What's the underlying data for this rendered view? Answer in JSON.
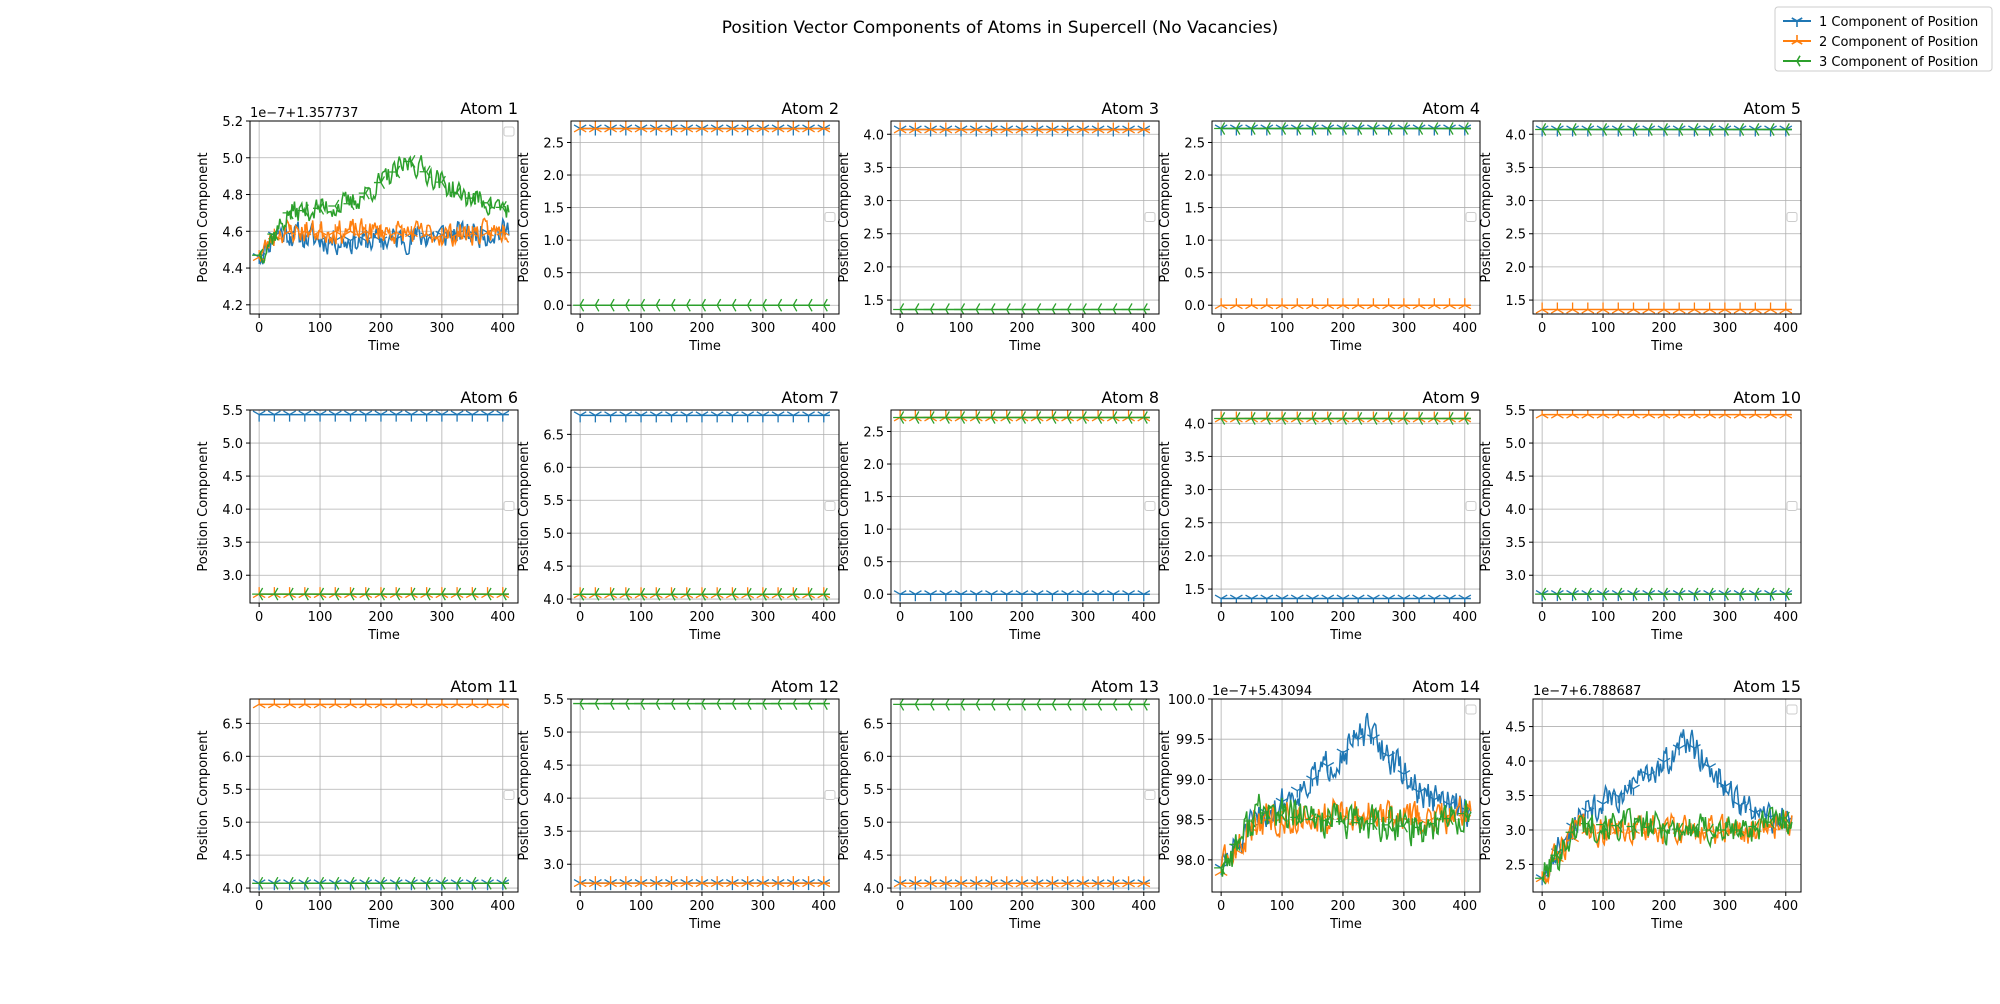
{
  "figure": {
    "title": "Position Vector Components of Atoms in Supercell (No Vacancies)"
  },
  "legend": {
    "placement": "top-right",
    "entries": [
      {
        "label": "1 Component of Position",
        "color": "#1f77b4",
        "marker": "tri_down"
      },
      {
        "label": "2 Component of Position",
        "color": "#ff7f0e",
        "marker": "tri_up"
      },
      {
        "label": "3 Component of Position",
        "color": "#2ca02c",
        "marker": "tri_left"
      }
    ]
  },
  "chart_data": [
    {
      "type": "line",
      "title": "Atom 1",
      "xlabel": "Time",
      "ylabel": "Position Component",
      "offset_text": "1e−7+1.357737",
      "xlim": [
        -15,
        425
      ],
      "ylim": [
        4.15,
        5.2
      ],
      "xticks": [
        0,
        100,
        200,
        300,
        400
      ],
      "yticks": [
        4.2,
        4.4,
        4.6,
        4.8,
        5.0,
        5.2
      ],
      "grid": true,
      "noisy": true,
      "series": [
        {
          "name": "1 Component of Position",
          "color": "#1f77b4",
          "marker": "tri_down",
          "start": 4.46,
          "anchors": [
            [
              0,
              4.46
            ],
            [
              30,
              4.6
            ],
            [
              100,
              4.55
            ],
            [
              200,
              4.55
            ],
            [
              300,
              4.58
            ],
            [
              410,
              4.6
            ]
          ],
          "noise": 0.1,
          "seed": 11
        },
        {
          "name": "2 Component of Position",
          "color": "#ff7f0e",
          "marker": "tri_up",
          "start": 4.46,
          "anchors": [
            [
              0,
              4.46
            ],
            [
              30,
              4.6
            ],
            [
              100,
              4.6
            ],
            [
              200,
              4.6
            ],
            [
              300,
              4.58
            ],
            [
              410,
              4.6
            ]
          ],
          "noise": 0.09,
          "seed": 23
        },
        {
          "name": "3 Component of Position",
          "color": "#2ca02c",
          "marker": "tri_left",
          "start": 4.47,
          "anchors": [
            [
              0,
              4.47
            ],
            [
              50,
              4.7
            ],
            [
              150,
              4.75
            ],
            [
              250,
              4.98
            ],
            [
              330,
              4.8
            ],
            [
              410,
              4.72
            ]
          ],
          "noise": 0.09,
          "seed": 37
        }
      ]
    },
    {
      "type": "line",
      "title": "Atom 2",
      "xlabel": "Time",
      "ylabel": "Position Component",
      "xlim": [
        -15,
        425
      ],
      "ylim": [
        -0.135,
        2.83
      ],
      "xticks": [
        0,
        100,
        200,
        300,
        400
      ],
      "yticks": [
        0.0,
        0.5,
        1.0,
        1.5,
        2.0,
        2.5
      ],
      "grid": true,
      "series": [
        {
          "name": "1 Component of Position",
          "color": "#1f77b4",
          "marker": "tri_down",
          "value": 2.7148
        },
        {
          "name": "2 Component of Position",
          "color": "#ff7f0e",
          "marker": "tri_up",
          "value": 2.7148
        },
        {
          "name": "3 Component of Position",
          "color": "#2ca02c",
          "marker": "tri_left",
          "value": 0.0
        }
      ]
    },
    {
      "type": "line",
      "title": "Atom 3",
      "xlabel": "Time",
      "ylabel": "Position Component",
      "xlim": [
        -15,
        425
      ],
      "ylim": [
        1.29,
        4.2
      ],
      "xticks": [
        0,
        100,
        200,
        300,
        400
      ],
      "yticks": [
        1.5,
        2.0,
        2.5,
        3.0,
        3.5,
        4.0
      ],
      "grid": true,
      "series": [
        {
          "name": "1 Component of Position",
          "color": "#1f77b4",
          "marker": "tri_down",
          "value": 4.0722
        },
        {
          "name": "2 Component of Position",
          "color": "#ff7f0e",
          "marker": "tri_up",
          "value": 4.0722
        },
        {
          "name": "3 Component of Position",
          "color": "#2ca02c",
          "marker": "tri_left",
          "value": 1.3577
        }
      ]
    },
    {
      "type": "line",
      "title": "Atom 4",
      "xlabel": "Time",
      "ylabel": "Position Component",
      "xlim": [
        -15,
        425
      ],
      "ylim": [
        -0.135,
        2.83
      ],
      "xticks": [
        0,
        100,
        200,
        300,
        400
      ],
      "yticks": [
        0.0,
        0.5,
        1.0,
        1.5,
        2.0,
        2.5
      ],
      "grid": true,
      "series": [
        {
          "name": "1 Component of Position",
          "color": "#1f77b4",
          "marker": "tri_down",
          "value": 2.7148
        },
        {
          "name": "2 Component of Position",
          "color": "#ff7f0e",
          "marker": "tri_up",
          "value": 0.0
        },
        {
          "name": "3 Component of Position",
          "color": "#2ca02c",
          "marker": "tri_left",
          "value": 2.7148
        }
      ]
    },
    {
      "type": "line",
      "title": "Atom 5",
      "xlabel": "Time",
      "ylabel": "Position Component",
      "xlim": [
        -15,
        425
      ],
      "ylim": [
        1.29,
        4.2
      ],
      "xticks": [
        0,
        100,
        200,
        300,
        400
      ],
      "yticks": [
        1.5,
        2.0,
        2.5,
        3.0,
        3.5,
        4.0
      ],
      "grid": true,
      "series": [
        {
          "name": "1 Component of Position",
          "color": "#1f77b4",
          "marker": "tri_down",
          "value": 4.0722
        },
        {
          "name": "2 Component of Position",
          "color": "#ff7f0e",
          "marker": "tri_up",
          "value": 1.3577
        },
        {
          "name": "3 Component of Position",
          "color": "#2ca02c",
          "marker": "tri_left",
          "value": 4.0722
        }
      ]
    },
    {
      "type": "line",
      "title": "Atom 6",
      "xlabel": "Time",
      "ylabel": "Position Component",
      "xlim": [
        -15,
        425
      ],
      "ylim": [
        2.58,
        5.5
      ],
      "xticks": [
        0,
        100,
        200,
        300,
        400
      ],
      "yticks": [
        3.0,
        3.5,
        4.0,
        4.5,
        5.0,
        5.5
      ],
      "grid": true,
      "series": [
        {
          "name": "1 Component of Position",
          "color": "#1f77b4",
          "marker": "tri_down",
          "value": 5.4309
        },
        {
          "name": "2 Component of Position",
          "color": "#ff7f0e",
          "marker": "tri_up",
          "value": 2.7148
        },
        {
          "name": "3 Component of Position",
          "color": "#2ca02c",
          "marker": "tri_left",
          "value": 2.7148
        }
      ]
    },
    {
      "type": "line",
      "title": "Atom 7",
      "xlabel": "Time",
      "ylabel": "Position Component",
      "xlim": [
        -15,
        425
      ],
      "ylim": [
        3.94,
        6.87
      ],
      "xticks": [
        0,
        100,
        200,
        300,
        400
      ],
      "yticks": [
        4.0,
        4.5,
        5.0,
        5.5,
        6.0,
        6.5
      ],
      "grid": true,
      "series": [
        {
          "name": "1 Component of Position",
          "color": "#1f77b4",
          "marker": "tri_down",
          "value": 6.7887
        },
        {
          "name": "2 Component of Position",
          "color": "#ff7f0e",
          "marker": "tri_up",
          "value": 4.0722
        },
        {
          "name": "3 Component of Position",
          "color": "#2ca02c",
          "marker": "tri_left",
          "value": 4.0722
        }
      ]
    },
    {
      "type": "line",
      "title": "Atom 8",
      "xlabel": "Time",
      "ylabel": "Position Component",
      "xlim": [
        -15,
        425
      ],
      "ylim": [
        -0.135,
        2.83
      ],
      "xticks": [
        0,
        100,
        200,
        300,
        400
      ],
      "yticks": [
        0.0,
        0.5,
        1.0,
        1.5,
        2.0,
        2.5
      ],
      "grid": true,
      "series": [
        {
          "name": "1 Component of Position",
          "color": "#1f77b4",
          "marker": "tri_down",
          "value": 0.0
        },
        {
          "name": "2 Component of Position",
          "color": "#ff7f0e",
          "marker": "tri_up",
          "value": 2.7148
        },
        {
          "name": "3 Component of Position",
          "color": "#2ca02c",
          "marker": "tri_left",
          "value": 2.7148
        }
      ]
    },
    {
      "type": "line",
      "title": "Atom 9",
      "xlabel": "Time",
      "ylabel": "Position Component",
      "xlim": [
        -15,
        425
      ],
      "ylim": [
        1.29,
        4.2
      ],
      "xticks": [
        0,
        100,
        200,
        300,
        400
      ],
      "yticks": [
        1.5,
        2.0,
        2.5,
        3.0,
        3.5,
        4.0
      ],
      "grid": true,
      "series": [
        {
          "name": "1 Component of Position",
          "color": "#1f77b4",
          "marker": "tri_down",
          "value": 1.3577
        },
        {
          "name": "2 Component of Position",
          "color": "#ff7f0e",
          "marker": "tri_up",
          "value": 4.0722
        },
        {
          "name": "3 Component of Position",
          "color": "#2ca02c",
          "marker": "tri_left",
          "value": 4.0722
        }
      ]
    },
    {
      "type": "line",
      "title": "Atom 10",
      "xlabel": "Time",
      "ylabel": "Position Component",
      "xlim": [
        -15,
        425
      ],
      "ylim": [
        2.58,
        5.5
      ],
      "xticks": [
        0,
        100,
        200,
        300,
        400
      ],
      "yticks": [
        3.0,
        3.5,
        4.0,
        4.5,
        5.0,
        5.5
      ],
      "grid": true,
      "series": [
        {
          "name": "1 Component of Position",
          "color": "#1f77b4",
          "marker": "tri_down",
          "value": 2.7148
        },
        {
          "name": "2 Component of Position",
          "color": "#ff7f0e",
          "marker": "tri_up",
          "value": 5.4309
        },
        {
          "name": "3 Component of Position",
          "color": "#2ca02c",
          "marker": "tri_left",
          "value": 2.7148
        }
      ]
    },
    {
      "type": "line",
      "title": "Atom 11",
      "xlabel": "Time",
      "ylabel": "Position Component",
      "xlim": [
        -15,
        425
      ],
      "ylim": [
        3.94,
        6.87
      ],
      "xticks": [
        0,
        100,
        200,
        300,
        400
      ],
      "yticks": [
        4.0,
        4.5,
        5.0,
        5.5,
        6.0,
        6.5
      ],
      "grid": true,
      "series": [
        {
          "name": "1 Component of Position",
          "color": "#1f77b4",
          "marker": "tri_down",
          "value": 4.0722
        },
        {
          "name": "2 Component of Position",
          "color": "#ff7f0e",
          "marker": "tri_up",
          "value": 6.7887
        },
        {
          "name": "3 Component of Position",
          "color": "#2ca02c",
          "marker": "tri_left",
          "value": 4.0722
        }
      ]
    },
    {
      "type": "line",
      "title": "Atom 12",
      "xlabel": "Time",
      "ylabel": "Position Component",
      "xlim": [
        -15,
        425
      ],
      "ylim": [
        2.58,
        5.5
      ],
      "xticks": [
        0,
        100,
        200,
        300,
        400
      ],
      "yticks": [
        3.0,
        3.5,
        4.0,
        4.5,
        5.0,
        5.5
      ],
      "grid": true,
      "series": [
        {
          "name": "1 Component of Position",
          "color": "#1f77b4",
          "marker": "tri_down",
          "value": 2.7148
        },
        {
          "name": "2 Component of Position",
          "color": "#ff7f0e",
          "marker": "tri_up",
          "value": 2.7148
        },
        {
          "name": "3 Component of Position",
          "color": "#2ca02c",
          "marker": "tri_left",
          "value": 5.4309
        }
      ]
    },
    {
      "type": "line",
      "title": "Atom 13",
      "xlabel": "Time",
      "ylabel": "Position Component",
      "xlim": [
        -15,
        425
      ],
      "ylim": [
        3.94,
        6.87
      ],
      "xticks": [
        0,
        100,
        200,
        300,
        400
      ],
      "yticks": [
        4.0,
        4.5,
        5.0,
        5.5,
        6.0,
        6.5
      ],
      "grid": true,
      "series": [
        {
          "name": "1 Component of Position",
          "color": "#1f77b4",
          "marker": "tri_down",
          "value": 4.0722
        },
        {
          "name": "2 Component of Position",
          "color": "#ff7f0e",
          "marker": "tri_up",
          "value": 4.0722
        },
        {
          "name": "3 Component of Position",
          "color": "#2ca02c",
          "marker": "tri_left",
          "value": 6.7887
        }
      ]
    },
    {
      "type": "line",
      "title": "Atom 14",
      "xlabel": "Time",
      "ylabel": "Position Component",
      "offset_text": "1e−7+5.43094",
      "xlim": [
        -15,
        425
      ],
      "ylim": [
        97.6,
        100.0
      ],
      "xticks": [
        0,
        100,
        200,
        300,
        400
      ],
      "yticks": [
        98.0,
        98.5,
        99.0,
        99.5,
        100.0
      ],
      "grid": true,
      "noisy": true,
      "series": [
        {
          "name": "1 Component of Position",
          "color": "#1f77b4",
          "marker": "tri_down",
          "anchors": [
            [
              0,
              97.9
            ],
            [
              60,
              98.5
            ],
            [
              150,
              99.0
            ],
            [
              240,
              99.6
            ],
            [
              330,
              98.8
            ],
            [
              410,
              98.6
            ]
          ],
          "noise": 0.28,
          "seed": 51
        },
        {
          "name": "2 Component of Position",
          "color": "#ff7f0e",
          "marker": "tri_up",
          "anchors": [
            [
              0,
              97.85
            ],
            [
              60,
              98.5
            ],
            [
              150,
              98.55
            ],
            [
              250,
              98.55
            ],
            [
              330,
              98.5
            ],
            [
              410,
              98.6
            ]
          ],
          "noise": 0.3,
          "seed": 63
        },
        {
          "name": "3 Component of Position",
          "color": "#2ca02c",
          "marker": "tri_left",
          "anchors": [
            [
              0,
              97.9
            ],
            [
              60,
              98.6
            ],
            [
              150,
              98.5
            ],
            [
              250,
              98.45
            ],
            [
              330,
              98.4
            ],
            [
              410,
              98.6
            ]
          ],
          "noise": 0.32,
          "seed": 77
        }
      ]
    },
    {
      "type": "line",
      "title": "Atom 15",
      "xlabel": "Time",
      "ylabel": "Position Component",
      "offset_text": "1e−7+6.788687",
      "xlim": [
        -15,
        425
      ],
      "ylim": [
        2.1,
        4.9
      ],
      "xticks": [
        0,
        100,
        200,
        300,
        400
      ],
      "yticks": [
        2.5,
        3.0,
        3.5,
        4.0,
        4.5
      ],
      "grid": true,
      "noisy": true,
      "series": [
        {
          "name": "1 Component of Position",
          "color": "#1f77b4",
          "marker": "tri_down",
          "anchors": [
            [
              0,
              2.3
            ],
            [
              60,
              3.2
            ],
            [
              150,
              3.6
            ],
            [
              240,
              4.3
            ],
            [
              330,
              3.3
            ],
            [
              410,
              3.1
            ]
          ],
          "noise": 0.3,
          "seed": 81
        },
        {
          "name": "2 Component of Position",
          "color": "#ff7f0e",
          "marker": "tri_up",
          "anchors": [
            [
              0,
              2.3
            ],
            [
              60,
              3.0
            ],
            [
              150,
              3.0
            ],
            [
              250,
              3.0
            ],
            [
              330,
              3.0
            ],
            [
              410,
              3.1
            ]
          ],
          "noise": 0.3,
          "seed": 93
        },
        {
          "name": "3 Component of Position",
          "color": "#2ca02c",
          "marker": "tri_left",
          "anchors": [
            [
              0,
              2.3
            ],
            [
              60,
              3.1
            ],
            [
              150,
              3.05
            ],
            [
              250,
              3.0
            ],
            [
              330,
              3.0
            ],
            [
              410,
              3.2
            ]
          ],
          "noise": 0.32,
          "seed": 101
        }
      ]
    }
  ]
}
